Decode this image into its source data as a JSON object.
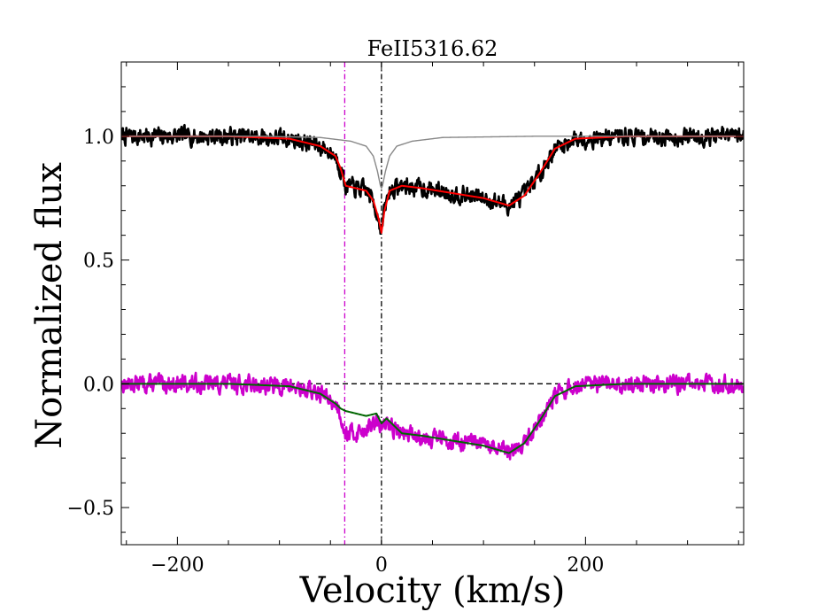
{
  "chart_data": {
    "type": "line",
    "title": "FeII5316.62",
    "xlabel": "Velocity (km/s)",
    "ylabel": "Normalized flux",
    "xlim": [
      -255,
      355
    ],
    "ylim": [
      -0.65,
      1.3
    ],
    "xticks": [
      -200,
      0,
      200
    ],
    "xtick_labels": [
      "−200",
      "0",
      "200"
    ],
    "yticks": [
      -0.5,
      0.0,
      0.5,
      1.0
    ],
    "ytick_labels": [
      "−0.5",
      "0.0",
      "0.5",
      "1.0"
    ],
    "grid": false,
    "reference_lines": [
      {
        "name": "zero-velocity",
        "orientation": "vertical",
        "value": 0,
        "color": "#000000",
        "style": "dash-dot"
      },
      {
        "name": "component-marker",
        "orientation": "vertical",
        "value": -36,
        "color": "#cc00cc",
        "style": "dash-dot"
      },
      {
        "name": "zero-flux",
        "orientation": "horizontal",
        "value": 0.0,
        "color": "#000000",
        "style": "dashed"
      }
    ],
    "series": [
      {
        "name": "observed-spectrum",
        "color": "#000000",
        "noisy": true,
        "noise": 0.03,
        "seed": 7,
        "points": [
          [
            -255,
            1.0
          ],
          [
            -150,
            1.0
          ],
          [
            -90,
            0.99
          ],
          [
            -60,
            0.96
          ],
          [
            -45,
            0.92
          ],
          [
            -40,
            0.87
          ],
          [
            -35,
            0.8
          ],
          [
            -25,
            0.79
          ],
          [
            -15,
            0.78
          ],
          [
            -8,
            0.74
          ],
          [
            -3,
            0.67
          ],
          [
            0,
            0.62
          ],
          [
            3,
            0.7
          ],
          [
            8,
            0.78
          ],
          [
            20,
            0.8
          ],
          [
            40,
            0.79
          ],
          [
            70,
            0.77
          ],
          [
            100,
            0.75
          ],
          [
            125,
            0.72
          ],
          [
            140,
            0.76
          ],
          [
            155,
            0.85
          ],
          [
            170,
            0.95
          ],
          [
            190,
            0.99
          ],
          [
            240,
            1.0
          ],
          [
            355,
            1.0
          ]
        ]
      },
      {
        "name": "model-fit",
        "color": "#ff0000",
        "noisy": false,
        "points": [
          [
            -255,
            1.0
          ],
          [
            -150,
            1.0
          ],
          [
            -90,
            0.99
          ],
          [
            -60,
            0.96
          ],
          [
            -45,
            0.92
          ],
          [
            -40,
            0.87
          ],
          [
            -35,
            0.8
          ],
          [
            -25,
            0.79
          ],
          [
            -15,
            0.78
          ],
          [
            -8,
            0.74
          ],
          [
            -3,
            0.67
          ],
          [
            0,
            0.61
          ],
          [
            3,
            0.7
          ],
          [
            8,
            0.78
          ],
          [
            20,
            0.8
          ],
          [
            40,
            0.79
          ],
          [
            70,
            0.77
          ],
          [
            100,
            0.75
          ],
          [
            125,
            0.72
          ],
          [
            140,
            0.76
          ],
          [
            155,
            0.85
          ],
          [
            170,
            0.95
          ],
          [
            190,
            0.99
          ],
          [
            240,
            1.0
          ],
          [
            355,
            1.0
          ]
        ]
      },
      {
        "name": "secondary-component-model",
        "color": "#888888",
        "noisy": false,
        "points": [
          [
            -255,
            1.0
          ],
          [
            -120,
            1.0
          ],
          [
            -60,
            0.995
          ],
          [
            -30,
            0.98
          ],
          [
            -15,
            0.96
          ],
          [
            -8,
            0.92
          ],
          [
            -4,
            0.86
          ],
          [
            -1,
            0.8
          ],
          [
            0,
            0.79
          ],
          [
            1,
            0.8
          ],
          [
            4,
            0.86
          ],
          [
            8,
            0.92
          ],
          [
            15,
            0.96
          ],
          [
            30,
            0.98
          ],
          [
            60,
            0.995
          ],
          [
            150,
            1.0
          ],
          [
            355,
            1.0
          ]
        ]
      },
      {
        "name": "residual-spectrum",
        "color": "#cc00cc",
        "noisy": true,
        "noise": 0.03,
        "seed": 13,
        "points": [
          [
            -255,
            0.0
          ],
          [
            -150,
            0.0
          ],
          [
            -90,
            -0.01
          ],
          [
            -60,
            -0.04
          ],
          [
            -45,
            -0.08
          ],
          [
            -40,
            -0.12
          ],
          [
            -35,
            -0.2
          ],
          [
            -25,
            -0.2
          ],
          [
            -15,
            -0.18
          ],
          [
            -5,
            -0.16
          ],
          [
            0,
            -0.17
          ],
          [
            10,
            -0.17
          ],
          [
            20,
            -0.2
          ],
          [
            40,
            -0.21
          ],
          [
            70,
            -0.23
          ],
          [
            100,
            -0.25
          ],
          [
            125,
            -0.28
          ],
          [
            140,
            -0.24
          ],
          [
            155,
            -0.15
          ],
          [
            170,
            -0.05
          ],
          [
            190,
            -0.01
          ],
          [
            240,
            0.0
          ],
          [
            355,
            0.0
          ]
        ]
      },
      {
        "name": "residual-fit",
        "color": "#006600",
        "noisy": false,
        "points": [
          [
            -255,
            0.0
          ],
          [
            -150,
            0.0
          ],
          [
            -90,
            -0.01
          ],
          [
            -60,
            -0.04
          ],
          [
            -45,
            -0.08
          ],
          [
            -40,
            -0.1
          ],
          [
            -35,
            -0.11
          ],
          [
            -25,
            -0.12
          ],
          [
            -15,
            -0.13
          ],
          [
            -5,
            -0.12
          ],
          [
            0,
            -0.16
          ],
          [
            5,
            -0.14
          ],
          [
            20,
            -0.2
          ],
          [
            40,
            -0.21
          ],
          [
            70,
            -0.23
          ],
          [
            100,
            -0.25
          ],
          [
            125,
            -0.28
          ],
          [
            140,
            -0.24
          ],
          [
            155,
            -0.15
          ],
          [
            170,
            -0.05
          ],
          [
            190,
            -0.01
          ],
          [
            240,
            0.0
          ],
          [
            355,
            0.0
          ]
        ]
      }
    ]
  }
}
